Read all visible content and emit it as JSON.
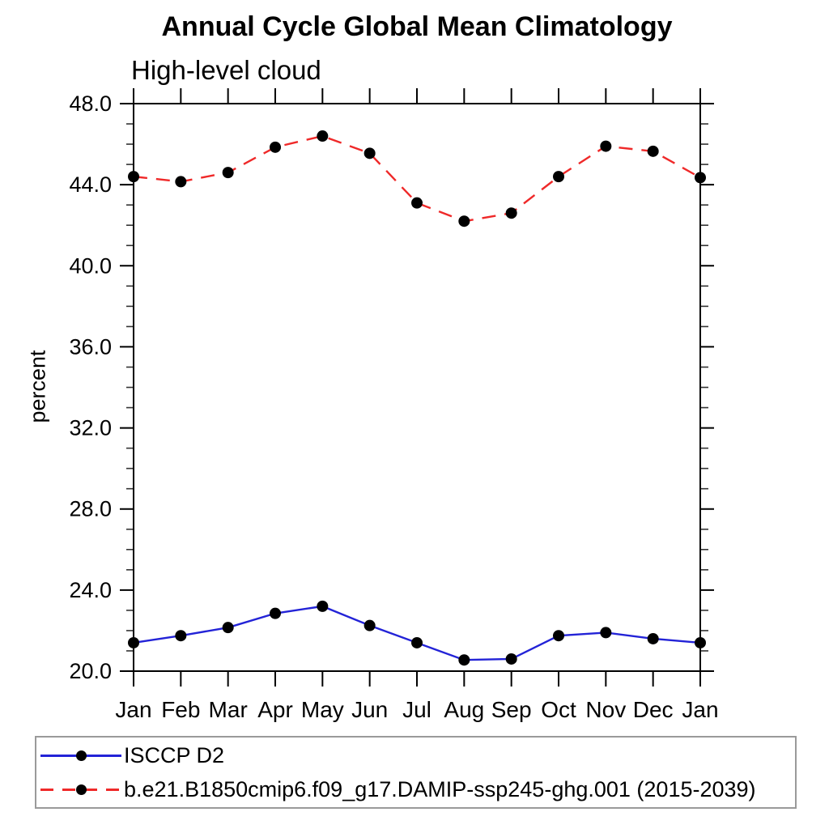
{
  "title": "Annual Cycle Global Mean Climatology",
  "subtitle": "High-level cloud",
  "ylabel": "percent",
  "legend": {
    "items": [
      {
        "label": "ISCCP D2",
        "color": "#2323d7",
        "style": "solid"
      },
      {
        "label": "b.e21.B1850cmip6.f09_g17.DAMIP-ssp245-ghg.001 (2015-2039)",
        "color": "#ef2929",
        "style": "dashed"
      }
    ]
  },
  "chart_data": {
    "type": "line",
    "title": "Annual Cycle Global Mean Climatology",
    "subtitle": "High-level cloud",
    "xlabel": "",
    "ylabel": "percent",
    "categories": [
      "Jan",
      "Feb",
      "Mar",
      "Apr",
      "May",
      "Jun",
      "Jul",
      "Aug",
      "Sep",
      "Oct",
      "Nov",
      "Dec",
      "Jan"
    ],
    "ylim": [
      20.0,
      48.0
    ],
    "y_major_ticks": [
      20.0,
      24.0,
      28.0,
      32.0,
      36.0,
      40.0,
      44.0,
      48.0
    ],
    "y_tick_labels": [
      "20.0",
      "24.0",
      "28.0",
      "32.0",
      "36.0",
      "40.0",
      "44.0",
      "48.0"
    ],
    "y_minor_step": 1.0,
    "grid": false,
    "legend_position": "bottom",
    "marker_color": "#000000",
    "series": [
      {
        "name": "ISCCP D2",
        "color": "#2323d7",
        "line_style": "solid",
        "marker": "circle",
        "values": [
          21.4,
          21.75,
          22.15,
          22.85,
          23.2,
          22.25,
          21.4,
          20.55,
          20.6,
          21.75,
          21.9,
          21.6,
          21.4
        ]
      },
      {
        "name": "b.e21.B1850cmip6.f09_g17.DAMIP-ssp245-ghg.001 (2015-2039)",
        "color": "#ef2929",
        "line_style": "dashed",
        "marker": "circle",
        "values": [
          44.4,
          44.15,
          44.6,
          45.85,
          46.4,
          45.55,
          43.1,
          42.2,
          42.6,
          44.4,
          45.9,
          45.65,
          44.35
        ]
      }
    ]
  }
}
